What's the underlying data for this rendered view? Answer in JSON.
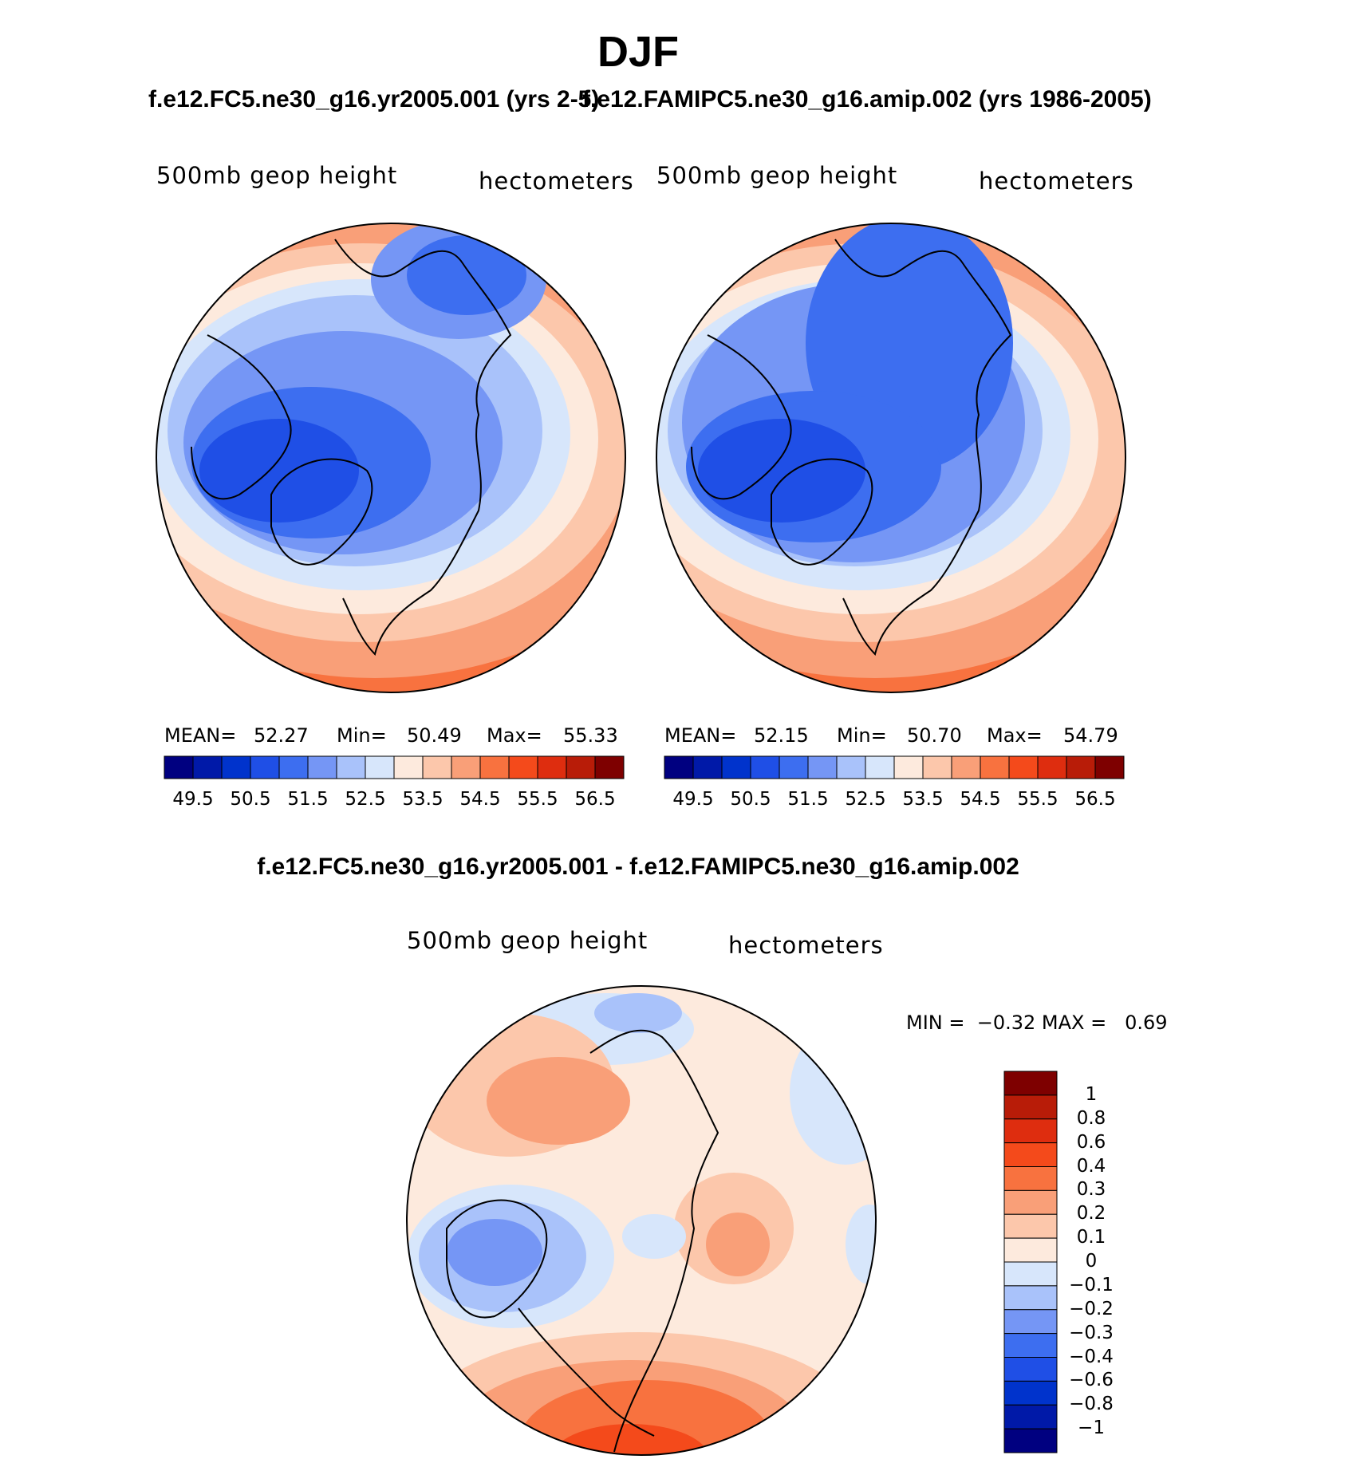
{
  "figure": {
    "title": "DJF",
    "case1_title": "f.e12.FC5.ne30_g16.yr2005.001 (yrs 2-5)",
    "case2_title": "f.e12.FAMIPC5.ne30_g16.amip.002 (yrs 1986-2005)",
    "diff_title": "f.e12.FC5.ne30_g16.yr2005.001 - f.e12.FAMIPC5.ne30_g16.amip.002"
  },
  "colors": {
    "abs_palette": [
      "#000080",
      "#0019a8",
      "#0033cc",
      "#1f4fe6",
      "#3d6ef0",
      "#7596f5",
      "#a9c2fa",
      "#d7e6fb",
      "#fdeadd",
      "#fcc7ab",
      "#f99f78",
      "#f8723f",
      "#f44a1b",
      "#de2d0f",
      "#b81c08",
      "#7e0000"
    ],
    "diff_palette": [
      "#000080",
      "#0019a8",
      "#0033cc",
      "#1f4fe6",
      "#3d6ef0",
      "#7596f5",
      "#a9c2fa",
      "#d7e6fb",
      "#fdeadd",
      "#fcc7ab",
      "#f99f78",
      "#f8723f",
      "#f44a1b",
      "#de2d0f",
      "#b81c08",
      "#7e0000"
    ],
    "coastline": "#000000"
  },
  "chart_data": [
    {
      "type": "heatmap",
      "projection": "polar stereographic (North Pole)",
      "variable": "500mb geop height",
      "units": "hectometers",
      "mean": "52.27",
      "min": "50.49",
      "max": "55.33",
      "mean_label": "MEAN=",
      "min_label": "Min=",
      "max_label": "Max=",
      "levels": [
        49.5,
        50,
        50.5,
        51,
        51.5,
        52,
        52.5,
        53,
        53.5,
        54,
        54.5,
        55,
        55.5,
        56,
        56.5
      ],
      "colorbar_labels": [
        "49.5",
        "50.5",
        "51.5",
        "52.5",
        "53.5",
        "54.5",
        "55.5",
        "56.5"
      ]
    },
    {
      "type": "heatmap",
      "projection": "polar stereographic (North Pole)",
      "variable": "500mb geop height",
      "units": "hectometers",
      "mean": "52.15",
      "min": "50.70",
      "max": "54.79",
      "mean_label": "MEAN=",
      "min_label": "Min=",
      "max_label": "Max=",
      "levels": [
        49.5,
        50,
        50.5,
        51,
        51.5,
        52,
        52.5,
        53,
        53.5,
        54,
        54.5,
        55,
        55.5,
        56,
        56.5
      ],
      "colorbar_labels": [
        "49.5",
        "50.5",
        "51.5",
        "52.5",
        "53.5",
        "54.5",
        "55.5",
        "56.5"
      ]
    },
    {
      "type": "heatmap",
      "projection": "polar stereographic (North Pole)",
      "variable": "500mb geop height",
      "units": "hectometers",
      "min": "-0.32",
      "max": "0.69",
      "stats_text": "MIN =  −0.32 MAX =   0.69",
      "levels": [
        -1,
        -0.8,
        -0.6,
        -0.4,
        -0.3,
        -0.2,
        -0.1,
        0,
        0.1,
        0.2,
        0.3,
        0.4,
        0.6,
        0.8,
        1
      ],
      "colorbar_labels": [
        "1",
        "0.8",
        "0.6",
        "0.4",
        "0.3",
        "0.2",
        "0.1",
        "0",
        "−0.1",
        "−0.2",
        "−0.3",
        "−0.4",
        "−0.6",
        "−0.8",
        "−1"
      ]
    }
  ]
}
